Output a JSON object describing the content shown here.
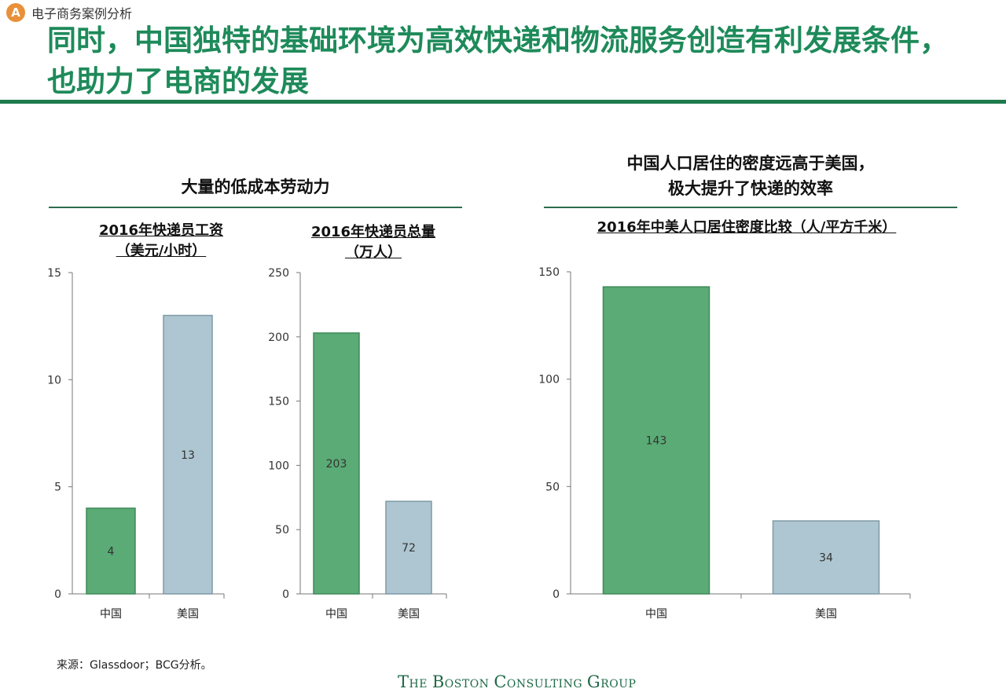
{
  "header": {
    "badge": "A",
    "section_label": "电子商务案例分析",
    "title": "同时，中国独特的基础环境为高效快递和物流服务创造有利发展条件，也助力了电商的发展"
  },
  "left_panel": {
    "heading": "大量的低成本劳动力"
  },
  "right_panel": {
    "heading": "中国人口居住的密度远高于美国，\n极大提升了快递的效率"
  },
  "footer": {
    "source": "来源：Glassdoor；BCG分析。",
    "logo": "The Boston Consulting Group"
  },
  "colors": {
    "china": "#5aab75",
    "usa": "#adc6d1",
    "accent": "#1e8a5a"
  },
  "chart_data": [
    {
      "type": "bar",
      "title": "2016年快递员工资\n（美元/小时）",
      "categories": [
        "中国",
        "美国"
      ],
      "values": [
        4,
        13
      ],
      "ylim": [
        0,
        15
      ],
      "yticks": [
        0,
        5,
        10,
        15
      ],
      "value_labels": [
        "4",
        "13"
      ],
      "legend": "none",
      "grid": false
    },
    {
      "type": "bar",
      "title": "2016年快递员总量\n（万人）",
      "categories": [
        "中国",
        "美国"
      ],
      "values": [
        203,
        72
      ],
      "ylim": [
        0,
        250
      ],
      "yticks": [
        0,
        50,
        100,
        150,
        200,
        250
      ],
      "value_labels": [
        "203",
        "72"
      ],
      "legend": "none",
      "grid": false
    },
    {
      "type": "bar",
      "title": "2016年中美人口居住密度比较（人/平方千米）",
      "categories": [
        "中国",
        "美国"
      ],
      "values": [
        143,
        34
      ],
      "ylim": [
        0,
        150
      ],
      "yticks": [
        0,
        50,
        100,
        150
      ],
      "value_labels": [
        "143",
        "34"
      ],
      "legend": "none",
      "grid": false
    }
  ]
}
